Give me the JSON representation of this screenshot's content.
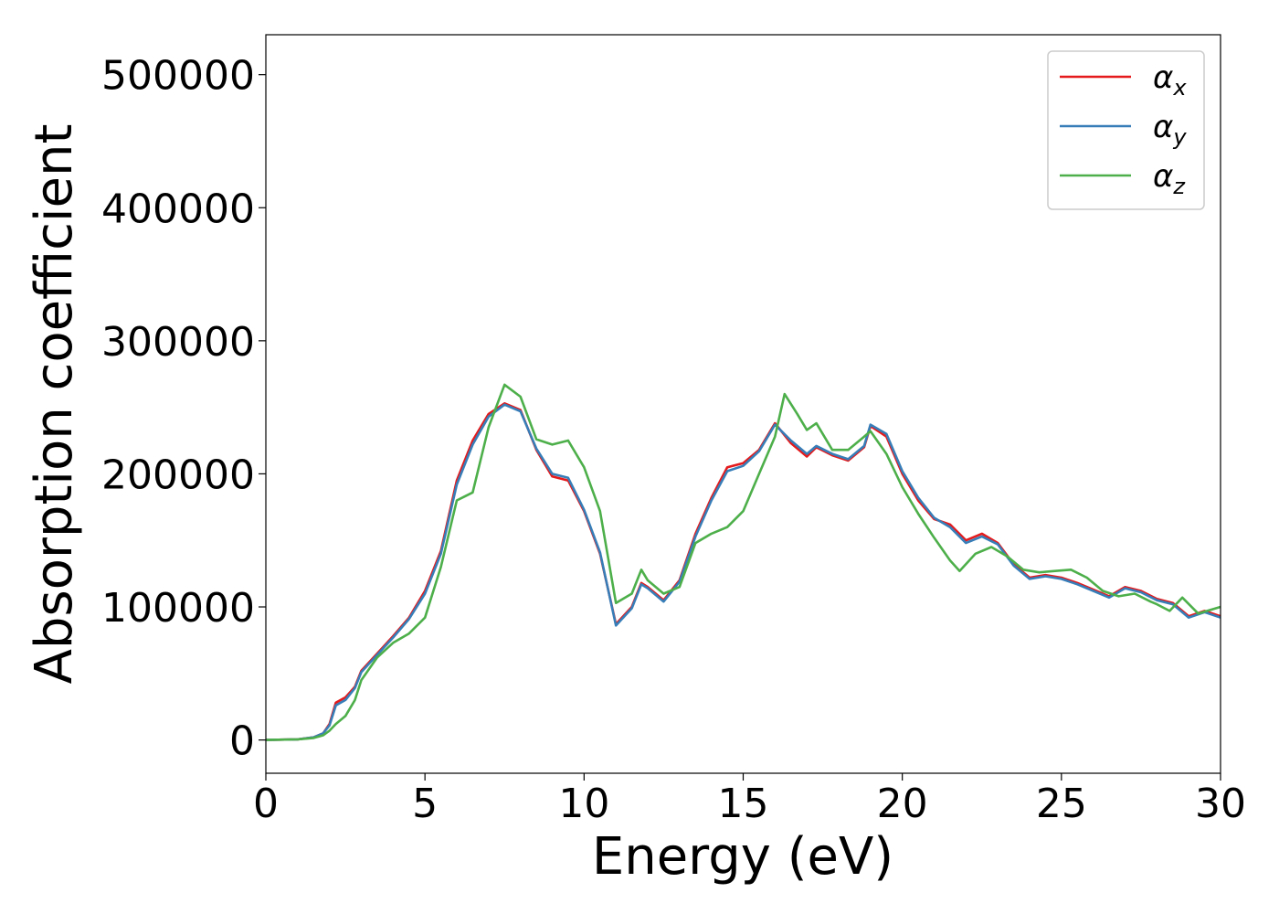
{
  "chart_data": {
    "type": "line",
    "title": "",
    "xlabel": "Energy (eV)",
    "ylabel": "Absorption coefficient",
    "xlim": [
      0,
      30
    ],
    "ylim": [
      -25000,
      530000
    ],
    "xticks": [
      "0",
      "5",
      "10",
      "15",
      "20",
      "25",
      "30"
    ],
    "yticks": [
      "0",
      "100000",
      "200000",
      "300000",
      "400000",
      "500000"
    ],
    "grid": false,
    "legend_position": "top-right",
    "legend": [
      {
        "symbol": "α",
        "subscript": "x",
        "color": "#e41a1c"
      },
      {
        "symbol": "α",
        "subscript": "y",
        "color": "#377eb8"
      },
      {
        "symbol": "α",
        "subscript": "z",
        "color": "#4daf4a"
      }
    ],
    "series": [
      {
        "color": "#e41a1c",
        "x": [
          0,
          1,
          1.5,
          1.8,
          2.0,
          2.2,
          2.5,
          2.8,
          3.0,
          3.5,
          4.0,
          4.5,
          5.0,
          5.5,
          6.0,
          6.5,
          7.0,
          7.5,
          8.0,
          8.5,
          9.0,
          9.5,
          10.0,
          10.5,
          11.0,
          11.5,
          11.8,
          12.0,
          12.5,
          13.0,
          13.5,
          14.0,
          14.5,
          15.0,
          15.5,
          16.0,
          16.5,
          17.0,
          17.3,
          17.8,
          18.3,
          18.8,
          19.0,
          19.5,
          20.0,
          20.5,
          21.0,
          21.5,
          22.0,
          22.5,
          23.0,
          23.5,
          24.0,
          24.5,
          25.0,
          25.5,
          26.0,
          26.5,
          27.0,
          27.5,
          28.0,
          28.5,
          29.0,
          29.5,
          30.0
        ],
        "values": [
          0,
          500,
          2000,
          5000,
          12000,
          28000,
          32000,
          40000,
          52000,
          65000,
          78000,
          92000,
          112000,
          142000,
          195000,
          225000,
          245000,
          253000,
          248000,
          218000,
          198000,
          195000,
          172000,
          140000,
          87000,
          100000,
          118000,
          115000,
          105000,
          120000,
          155000,
          182000,
          205000,
          208000,
          218000,
          238000,
          223000,
          213000,
          220000,
          214000,
          210000,
          220000,
          236000,
          228000,
          200000,
          180000,
          166000,
          162000,
          150000,
          155000,
          148000,
          132000,
          122000,
          124000,
          122000,
          118000,
          113000,
          108000,
          115000,
          112000,
          106000,
          103000,
          93000,
          97000,
          93000
        ]
      },
      {
        "color": "#377eb8",
        "x": [
          0,
          1,
          1.5,
          1.8,
          2.0,
          2.2,
          2.5,
          2.8,
          3.0,
          3.5,
          4.0,
          4.5,
          5.0,
          5.5,
          6.0,
          6.5,
          7.0,
          7.5,
          8.0,
          8.5,
          9.0,
          9.5,
          10.0,
          10.5,
          11.0,
          11.5,
          11.8,
          12.0,
          12.5,
          13.0,
          13.5,
          14.0,
          14.5,
          15.0,
          15.5,
          16.0,
          16.5,
          17.0,
          17.3,
          17.8,
          18.3,
          18.8,
          19.0,
          19.5,
          20.0,
          20.5,
          21.0,
          21.5,
          22.0,
          22.5,
          23.0,
          23.5,
          24.0,
          24.5,
          25.0,
          25.5,
          26.0,
          26.5,
          27.0,
          27.5,
          28.0,
          28.5,
          29.0,
          29.5,
          30.0
        ],
        "values": [
          0,
          500,
          2000,
          5000,
          11000,
          26000,
          30000,
          39000,
          51000,
          64000,
          77000,
          91000,
          110000,
          140000,
          192000,
          222000,
          243000,
          252000,
          247000,
          219000,
          200000,
          197000,
          173000,
          141000,
          86000,
          99000,
          117000,
          114000,
          104000,
          119000,
          153000,
          180000,
          202000,
          206000,
          217000,
          237000,
          225000,
          215000,
          221000,
          215000,
          211000,
          221000,
          237000,
          230000,
          202000,
          182000,
          167000,
          160000,
          148000,
          153000,
          147000,
          131000,
          121000,
          123000,
          121000,
          117000,
          112000,
          107000,
          114000,
          111000,
          105000,
          102000,
          92000,
          96000,
          92000
        ]
      },
      {
        "color": "#4daf4a",
        "x": [
          0,
          1,
          1.5,
          1.8,
          2.0,
          2.2,
          2.5,
          2.8,
          3.0,
          3.5,
          4.0,
          4.5,
          5.0,
          5.5,
          6.0,
          6.5,
          7.0,
          7.5,
          8.0,
          8.5,
          9.0,
          9.5,
          10.0,
          10.5,
          11.0,
          11.5,
          11.8,
          12.0,
          12.5,
          13.0,
          13.5,
          14.0,
          14.5,
          15.0,
          15.5,
          16.0,
          16.3,
          16.7,
          17.0,
          17.3,
          17.8,
          18.3,
          18.8,
          19.0,
          19.5,
          20.0,
          20.5,
          21.0,
          21.5,
          21.8,
          22.3,
          22.8,
          23.3,
          23.8,
          24.3,
          24.8,
          25.3,
          25.8,
          26.3,
          26.8,
          27.3,
          27.8,
          28.0,
          28.4,
          28.8,
          29.3,
          30.0
        ],
        "values": [
          0,
          500,
          1500,
          3500,
          7000,
          12000,
          18000,
          30000,
          45000,
          62000,
          73000,
          80000,
          92000,
          130000,
          180000,
          186000,
          235000,
          267000,
          258000,
          226000,
          222000,
          225000,
          205000,
          172000,
          103000,
          110000,
          128000,
          120000,
          110000,
          115000,
          148000,
          155000,
          160000,
          172000,
          200000,
          228000,
          260000,
          245000,
          233000,
          238000,
          218000,
          218000,
          228000,
          232000,
          215000,
          190000,
          170000,
          152000,
          135000,
          127000,
          140000,
          145000,
          138000,
          128000,
          126000,
          127000,
          128000,
          122000,
          112000,
          108000,
          110000,
          104000,
          102000,
          97000,
          107000,
          95000,
          100000
        ]
      }
    ]
  }
}
